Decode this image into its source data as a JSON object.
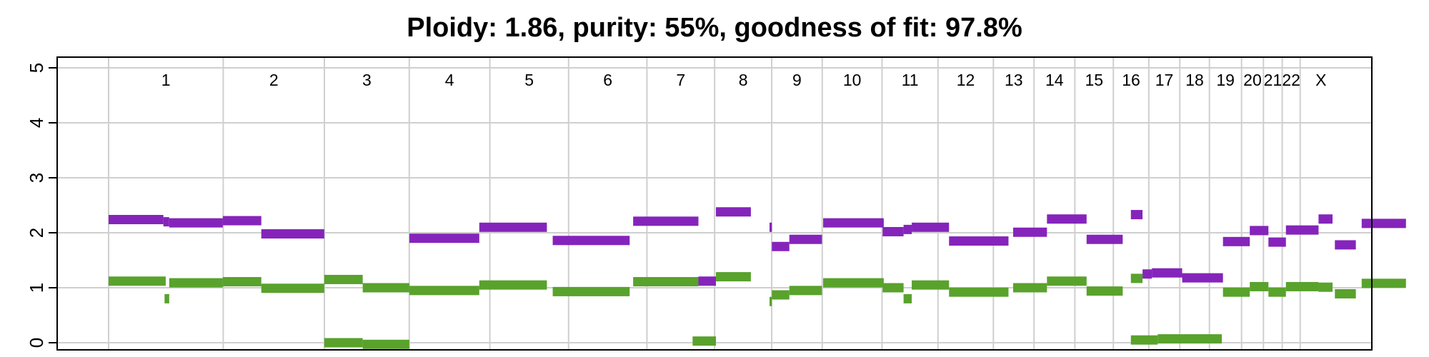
{
  "chart_data": {
    "type": "segment",
    "title": "Ploidy: 1.86, purity: 55%, goodness of fit: 97.8%",
    "xlabel": "",
    "ylabel": "",
    "ylim": [
      0,
      5
    ],
    "yticks": [
      "0",
      "1",
      "2",
      "3",
      "4",
      "5"
    ],
    "grid": true,
    "chromosomes": [
      "1",
      "2",
      "3",
      "4",
      "5",
      "6",
      "7",
      "8",
      "9",
      "10",
      "11",
      "12",
      "13",
      "14",
      "15",
      "16",
      "17",
      "18",
      "19",
      "20",
      "21",
      "22",
      "X"
    ],
    "chromosome_boundaries": [
      0,
      0.9833,
      1.8512,
      2.5793,
      3.2708,
      3.9462,
      4.6182,
      5.1989,
      5.6886,
      6.1221,
      6.6352,
      7.1152,
      7.5904,
      7.939,
      8.2893,
      8.6195,
      8.9235,
      9.1896,
      9.4439,
      9.7195,
      9.9072,
      10.0683,
      10.2223,
      10.5797
    ],
    "series": [
      {
        "name": "",
        "color": "#8524bb",
        "segments": [
          {
            "start": 0.0,
            "end": 0.47,
            "cn": 2.24
          },
          {
            "start": 0.47,
            "end": 0.52,
            "cn": 2.2
          },
          {
            "start": 0.52,
            "end": 0.98,
            "cn": 2.18
          },
          {
            "start": 0.98,
            "end": 1.31,
            "cn": 2.22
          },
          {
            "start": 1.31,
            "end": 1.85,
            "cn": 1.98
          },
          {
            "start": 2.58,
            "end": 3.18,
            "cn": 1.9
          },
          {
            "start": 3.18,
            "end": 3.76,
            "cn": 2.1
          },
          {
            "start": 3.81,
            "end": 4.47,
            "cn": 1.86
          },
          {
            "start": 4.5,
            "end": 5.06,
            "cn": 2.21
          },
          {
            "start": 5.06,
            "end": 5.21,
            "cn": 1.12
          },
          {
            "start": 5.21,
            "end": 5.51,
            "cn": 2.38
          },
          {
            "start": 5.67,
            "end": 5.69,
            "cn": 2.1
          },
          {
            "start": 5.69,
            "end": 5.84,
            "cn": 1.75
          },
          {
            "start": 5.84,
            "end": 6.12,
            "cn": 1.88
          },
          {
            "start": 6.13,
            "end": 6.65,
            "cn": 2.18
          },
          {
            "start": 6.64,
            "end": 6.82,
            "cn": 2.02
          },
          {
            "start": 6.82,
            "end": 6.89,
            "cn": 2.06
          },
          {
            "start": 6.89,
            "end": 7.21,
            "cn": 2.1
          },
          {
            "start": 7.21,
            "end": 7.72,
            "cn": 1.85
          },
          {
            "start": 7.76,
            "end": 8.05,
            "cn": 2.01
          },
          {
            "start": 8.05,
            "end": 8.39,
            "cn": 2.25
          },
          {
            "start": 8.39,
            "end": 8.7,
            "cn": 1.88
          },
          {
            "start": 8.77,
            "end": 8.87,
            "cn": 2.33
          },
          {
            "start": 8.87,
            "end": 8.95,
            "cn": 1.25
          },
          {
            "start": 8.95,
            "end": 9.21,
            "cn": 1.27
          },
          {
            "start": 9.21,
            "end": 9.56,
            "cn": 1.18
          },
          {
            "start": 9.56,
            "end": 9.79,
            "cn": 1.84
          },
          {
            "start": 9.79,
            "end": 9.95,
            "cn": 2.04
          },
          {
            "start": 9.95,
            "end": 10.1,
            "cn": 1.83
          },
          {
            "start": 10.1,
            "end": 10.38,
            "cn": 2.05
          },
          {
            "start": 10.38,
            "end": 10.5,
            "cn": 2.25
          },
          {
            "start": 10.52,
            "end": 10.7,
            "cn": 1.78
          },
          {
            "start": 10.75,
            "end": 11.13,
            "cn": 2.17
          }
        ]
      },
      {
        "name": "",
        "color": "#59a22c",
        "segments": [
          {
            "start": 0.0,
            "end": 0.49,
            "cn": 1.12
          },
          {
            "start": 0.48,
            "end": 0.52,
            "cn": 0.8
          },
          {
            "start": 0.52,
            "end": 0.98,
            "cn": 1.09
          },
          {
            "start": 0.98,
            "end": 1.31,
            "cn": 1.11
          },
          {
            "start": 1.31,
            "end": 1.85,
            "cn": 0.99
          },
          {
            "start": 1.85,
            "end": 2.18,
            "cn": 0.0
          },
          {
            "start": 1.85,
            "end": 2.18,
            "cn": 1.15
          },
          {
            "start": 2.18,
            "end": 2.58,
            "cn": 1.0
          },
          {
            "start": 2.18,
            "end": 2.58,
            "cn": -0.03
          },
          {
            "start": 2.58,
            "end": 3.18,
            "cn": 0.95
          },
          {
            "start": 3.18,
            "end": 3.76,
            "cn": 1.05
          },
          {
            "start": 3.81,
            "end": 4.47,
            "cn": 0.93
          },
          {
            "start": 4.5,
            "end": 5.06,
            "cn": 1.11
          },
          {
            "start": 5.01,
            "end": 5.21,
            "cn": 0.03
          },
          {
            "start": 5.21,
            "end": 5.51,
            "cn": 1.2
          },
          {
            "start": 5.67,
            "end": 5.69,
            "cn": 0.75
          },
          {
            "start": 5.69,
            "end": 5.84,
            "cn": 0.87
          },
          {
            "start": 5.84,
            "end": 6.12,
            "cn": 0.95
          },
          {
            "start": 6.13,
            "end": 6.65,
            "cn": 1.09
          },
          {
            "start": 6.64,
            "end": 6.82,
            "cn": 1.0
          },
          {
            "start": 6.82,
            "end": 6.89,
            "cn": 0.8
          },
          {
            "start": 6.89,
            "end": 7.21,
            "cn": 1.05
          },
          {
            "start": 7.21,
            "end": 7.72,
            "cn": 0.92
          },
          {
            "start": 7.76,
            "end": 8.05,
            "cn": 1.0
          },
          {
            "start": 8.05,
            "end": 8.39,
            "cn": 1.12
          },
          {
            "start": 8.39,
            "end": 8.7,
            "cn": 0.94
          },
          {
            "start": 8.77,
            "end": 8.87,
            "cn": 1.17
          },
          {
            "start": 8.77,
            "end": 9.0,
            "cn": 0.05
          },
          {
            "start": 9.0,
            "end": 9.55,
            "cn": 0.07
          },
          {
            "start": 9.56,
            "end": 9.79,
            "cn": 0.92
          },
          {
            "start": 9.79,
            "end": 9.95,
            "cn": 1.02
          },
          {
            "start": 9.95,
            "end": 10.1,
            "cn": 0.92
          },
          {
            "start": 10.1,
            "end": 10.38,
            "cn": 1.02
          },
          {
            "start": 10.38,
            "end": 10.5,
            "cn": 1.01
          },
          {
            "start": 10.52,
            "end": 10.7,
            "cn": 0.89
          },
          {
            "start": 10.75,
            "end": 11.13,
            "cn": 1.08
          }
        ]
      }
    ]
  }
}
